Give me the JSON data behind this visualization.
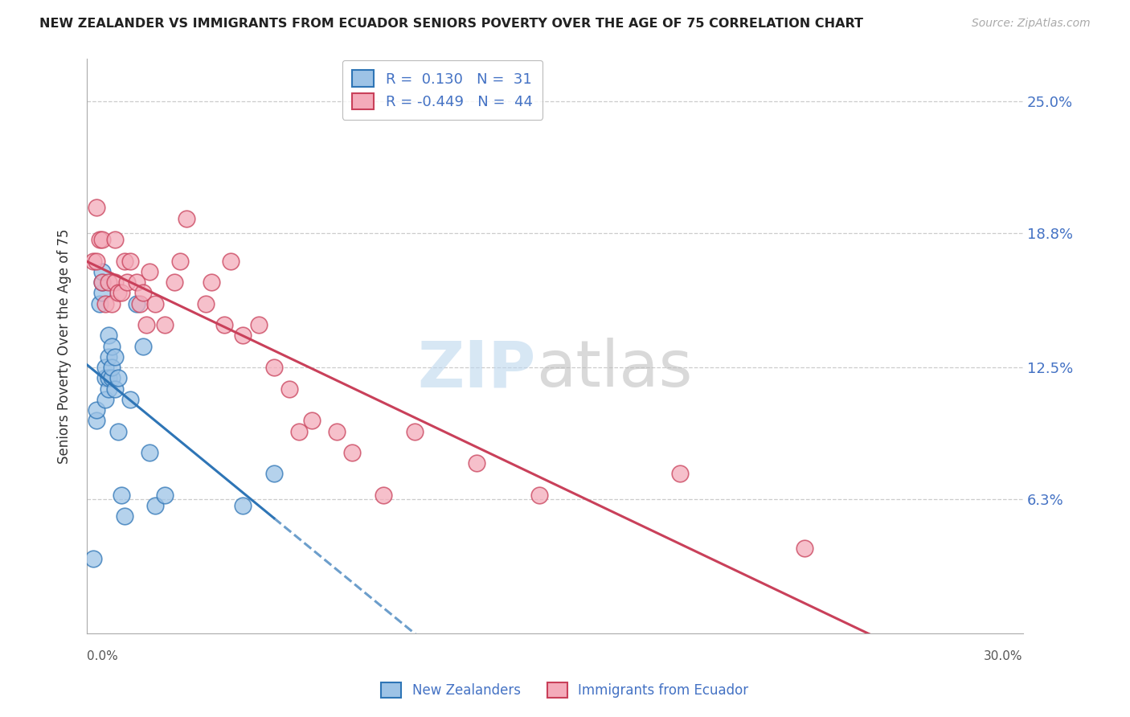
{
  "title": "NEW ZEALANDER VS IMMIGRANTS FROM ECUADOR SENIORS POVERTY OVER THE AGE OF 75 CORRELATION CHART",
  "source": "Source: ZipAtlas.com",
  "ylabel": "Seniors Poverty Over the Age of 75",
  "xmin": 0.0,
  "xmax": 0.3,
  "ymin": 0.0,
  "ymax": 0.27,
  "yticks": [
    0.063,
    0.125,
    0.188,
    0.25
  ],
  "ytick_labels": [
    "6.3%",
    "12.5%",
    "18.8%",
    "25.0%"
  ],
  "color_nz": "#9DC3E6",
  "color_ec": "#F4ABBA",
  "color_line_nz": "#2E75B6",
  "color_line_ec": "#C9405A",
  "color_text_blue": "#4472C4",
  "nz_R": 0.13,
  "nz_N": 31,
  "ec_R": -0.449,
  "ec_N": 44,
  "nz_x": [
    0.002,
    0.003,
    0.003,
    0.004,
    0.005,
    0.005,
    0.005,
    0.006,
    0.006,
    0.006,
    0.007,
    0.007,
    0.007,
    0.007,
    0.008,
    0.008,
    0.008,
    0.009,
    0.009,
    0.01,
    0.01,
    0.011,
    0.012,
    0.014,
    0.016,
    0.018,
    0.02,
    0.022,
    0.025,
    0.05,
    0.06
  ],
  "nz_y": [
    0.035,
    0.1,
    0.105,
    0.155,
    0.16,
    0.165,
    0.17,
    0.11,
    0.12,
    0.125,
    0.115,
    0.12,
    0.13,
    0.14,
    0.12,
    0.125,
    0.135,
    0.115,
    0.13,
    0.12,
    0.095,
    0.065,
    0.055,
    0.11,
    0.155,
    0.135,
    0.085,
    0.06,
    0.065,
    0.06,
    0.075
  ],
  "ec_x": [
    0.002,
    0.003,
    0.003,
    0.004,
    0.005,
    0.005,
    0.006,
    0.007,
    0.008,
    0.009,
    0.009,
    0.01,
    0.011,
    0.012,
    0.013,
    0.014,
    0.016,
    0.017,
    0.018,
    0.019,
    0.02,
    0.022,
    0.025,
    0.028,
    0.03,
    0.032,
    0.038,
    0.04,
    0.044,
    0.046,
    0.05,
    0.055,
    0.06,
    0.065,
    0.068,
    0.072,
    0.08,
    0.085,
    0.095,
    0.105,
    0.125,
    0.145,
    0.19,
    0.23
  ],
  "ec_y": [
    0.175,
    0.175,
    0.2,
    0.185,
    0.165,
    0.185,
    0.155,
    0.165,
    0.155,
    0.165,
    0.185,
    0.16,
    0.16,
    0.175,
    0.165,
    0.175,
    0.165,
    0.155,
    0.16,
    0.145,
    0.17,
    0.155,
    0.145,
    0.165,
    0.175,
    0.195,
    0.155,
    0.165,
    0.145,
    0.175,
    0.14,
    0.145,
    0.125,
    0.115,
    0.095,
    0.1,
    0.095,
    0.085,
    0.065,
    0.095,
    0.08,
    0.065,
    0.075,
    0.04
  ]
}
